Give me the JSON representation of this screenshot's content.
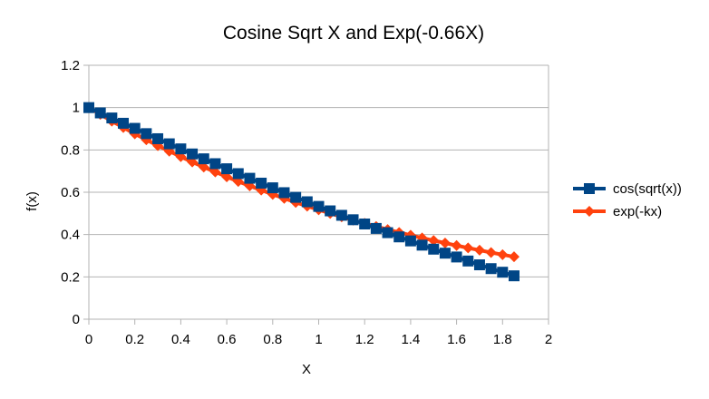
{
  "chart_data": {
    "type": "line",
    "title": "Cosine Sqrt X and Exp(-0.66X)",
    "xlabel": "X",
    "ylabel": "f(x)",
    "xlim": [
      0,
      2
    ],
    "ylim": [
      0,
      1.2
    ],
    "xticks": [
      "0",
      "0.2",
      "0.4",
      "0.6",
      "0.8",
      "1",
      "1.2",
      "1.4",
      "1.6",
      "1.8",
      "2"
    ],
    "yticks": [
      "0",
      "0.2",
      "0.4",
      "0.6",
      "0.8",
      "1",
      "1.2"
    ],
    "grid": "horizontal",
    "legend_position": "right",
    "x": [
      0,
      0.05,
      0.1,
      0.15,
      0.2,
      0.25,
      0.3,
      0.35,
      0.4,
      0.45,
      0.5,
      0.55,
      0.6,
      0.65,
      0.7,
      0.75,
      0.8,
      0.85,
      0.9,
      0.95,
      1.0,
      1.05,
      1.1,
      1.15,
      1.2,
      1.25,
      1.3,
      1.35,
      1.4,
      1.45,
      1.5,
      1.55,
      1.6,
      1.65,
      1.7,
      1.75,
      1.8,
      1.85
    ],
    "series": [
      {
        "name": "cos(sqrt(x))",
        "color": "#004586",
        "marker": "square",
        "values": [
          1.0,
          0.975,
          0.951,
          0.926,
          0.902,
          0.877,
          0.853,
          0.829,
          0.805,
          0.781,
          0.758,
          0.735,
          0.711,
          0.688,
          0.666,
          0.643,
          0.621,
          0.598,
          0.576,
          0.555,
          0.533,
          0.512,
          0.491,
          0.47,
          0.45,
          0.429,
          0.409,
          0.389,
          0.37,
          0.35,
          0.331,
          0.312,
          0.294,
          0.275,
          0.257,
          0.239,
          0.222,
          0.205
        ]
      },
      {
        "name": "exp(-kx)",
        "color": "#ff420e",
        "marker": "diamond",
        "values": [
          1.0,
          0.968,
          0.936,
          0.906,
          0.876,
          0.848,
          0.82,
          0.794,
          0.768,
          0.743,
          0.719,
          0.696,
          0.673,
          0.651,
          0.63,
          0.61,
          0.59,
          0.571,
          0.552,
          0.534,
          0.517,
          0.5,
          0.484,
          0.468,
          0.453,
          0.438,
          0.424,
          0.41,
          0.397,
          0.384,
          0.372,
          0.36,
          0.348,
          0.337,
          0.326,
          0.315,
          0.305,
          0.295
        ]
      }
    ]
  }
}
